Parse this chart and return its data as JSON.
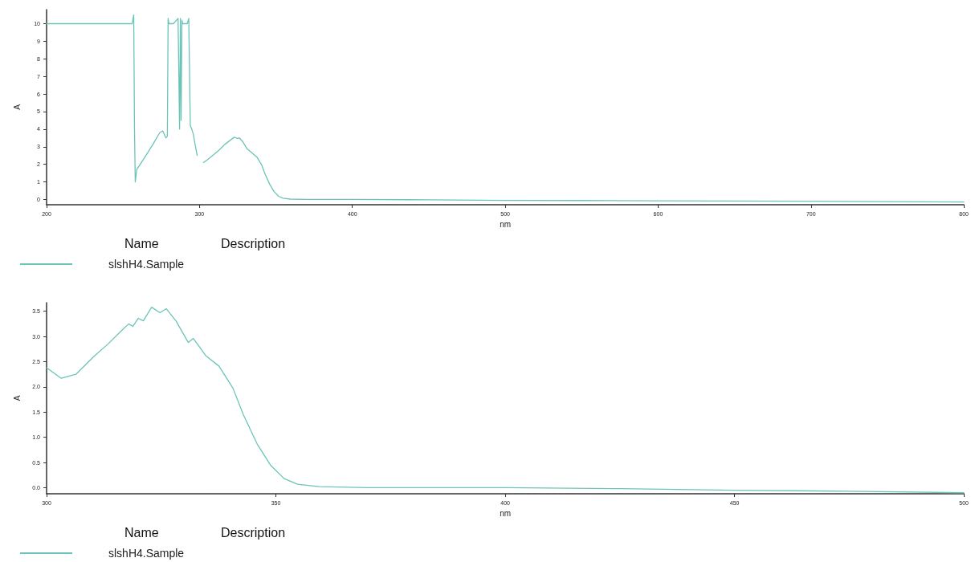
{
  "chart_data": [
    {
      "type": "line",
      "xlabel": "nm",
      "ylabel": "A",
      "legend": "bottom left",
      "legend_title": "Name",
      "annotations": [
        "Description"
      ],
      "marker": "none",
      "grid": false,
      "xlim": [
        200,
        800
      ],
      "xticks": [
        200,
        300,
        400,
        500,
        600,
        700,
        800
      ],
      "ylim": [
        -0.3,
        10.8
      ],
      "yticks": [
        0,
        1,
        2,
        3,
        4,
        5,
        6,
        7,
        8,
        9,
        10
      ],
      "series": [
        {
          "name": "slshH4.Sample",
          "color": "#6cc4b8",
          "x": [
            200,
            230,
            255,
            256,
            257,
            257.5,
            258,
            259,
            265,
            270,
            274,
            276,
            278,
            279,
            279.5,
            280,
            283,
            286,
            287,
            287.5,
            288,
            288.5,
            289,
            292,
            293,
            294,
            295,
            296,
            297,
            298.5,
            300,
            302.6,
            305,
            310,
            313.5,
            316.4,
            320,
            322.9,
            324.7,
            326.1,
            328.2,
            331,
            334.7,
            337.6,
            340.6,
            342.9,
            345.9,
            348.8,
            351.8,
            354.7,
            359.4,
            370,
            400,
            450,
            500,
            550,
            600,
            650,
            700,
            750,
            800
          ],
          "values": [
            10,
            10,
            10,
            10,
            10.5,
            4,
            1.0,
            1.7,
            2.5,
            3.2,
            3.8,
            3.9,
            3.5,
            3.6,
            10.3,
            10,
            10,
            10.3,
            4,
            10.3,
            4.5,
            10.2,
            10,
            10,
            10.3,
            4.2,
            4,
            3.7,
            3.2,
            2.5,
            null,
            2.1,
            2.25,
            2.6,
            2.86,
            3.12,
            3.36,
            3.55,
            3.47,
            3.5,
            3.3,
            2.9,
            2.62,
            2.41,
            1.98,
            1.45,
            0.87,
            0.45,
            0.18,
            0.07,
            0.02,
            0,
            0,
            -0.02,
            -0.05,
            -0.06,
            -0.08,
            -0.09,
            -0.1,
            -0.12,
            -0.15
          ]
        }
      ]
    },
    {
      "type": "line",
      "xlabel": "nm",
      "ylabel": "A",
      "legend": "bottom left",
      "legend_title": "Name",
      "annotations": [
        "Description"
      ],
      "marker": "none",
      "grid": false,
      "xlim": [
        300,
        500
      ],
      "xticks": [
        300,
        350,
        400,
        450,
        500
      ],
      "ylim": [
        -0.12,
        3.67
      ],
      "yticks": [
        {
          "value": 0,
          "label": "0.0"
        },
        0.5,
        {
          "value": 1,
          "label": "1.0"
        },
        1.5,
        {
          "value": 2,
          "label": "2.0"
        },
        2.5,
        {
          "value": 3,
          "label": "3.0"
        },
        3.5
      ],
      "series": [
        {
          "name": "slshH4.Sample",
          "color": "#6cc4b8",
          "x": [
            300,
            303.2,
            306.4,
            310.5,
            313.5,
            316.4,
            317.9,
            318.8,
            320,
            321.1,
            322.9,
            324.7,
            326.1,
            328.2,
            330.9,
            332,
            334.7,
            337.6,
            340.6,
            342.9,
            345.9,
            348.8,
            351.8,
            354.7,
            359.4,
            370,
            400,
            425,
            450,
            475,
            500
          ],
          "values": [
            2.38,
            2.17,
            2.25,
            2.62,
            2.86,
            3.12,
            3.25,
            3.2,
            3.36,
            3.31,
            3.58,
            3.47,
            3.55,
            3.31,
            2.88,
            2.96,
            2.62,
            2.41,
            1.98,
            1.45,
            0.87,
            0.45,
            0.18,
            0.07,
            0.02,
            0,
            0,
            -0.02,
            -0.05,
            -0.07,
            -0.1
          ]
        }
      ]
    }
  ]
}
